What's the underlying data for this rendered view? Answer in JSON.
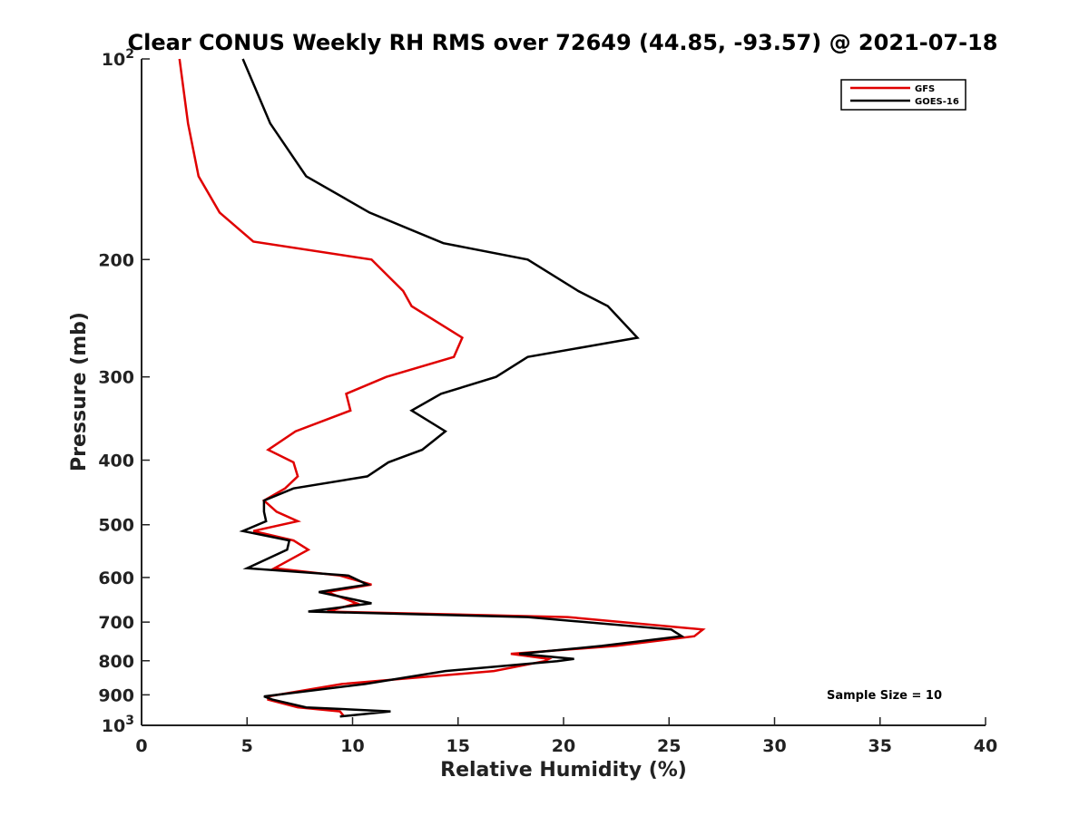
{
  "chart_data": {
    "type": "line",
    "title": "Clear CONUS Weekly RH RMS over 72649 (44.85, -93.57) @ 2021-07-18",
    "xlabel": "Relative Humidity (%)",
    "ylabel": "Pressure (mb)",
    "xlim": [
      0,
      40
    ],
    "ylim": [
      100,
      1000
    ],
    "y_scale": "log",
    "y_reversed": true,
    "x_ticks": [
      "0",
      "5",
      "10",
      "15",
      "20",
      "25",
      "30",
      "35",
      "40"
    ],
    "y_ticks": [
      {
        "value": 100,
        "base": "10",
        "exp": "2"
      },
      {
        "value": 200,
        "label": "200"
      },
      {
        "value": 300,
        "label": "300"
      },
      {
        "value": 400,
        "label": "400"
      },
      {
        "value": 500,
        "label": "500"
      },
      {
        "value": 600,
        "label": "600"
      },
      {
        "value": 700,
        "label": "700"
      },
      {
        "value": 800,
        "label": "800"
      },
      {
        "value": 900,
        "label": "900"
      },
      {
        "value": 1000,
        "base": "10",
        "exp": "3"
      }
    ],
    "grid": false,
    "legend_position": "top-right",
    "annotation": "Sample Size = 10",
    "series": [
      {
        "name": "GFS",
        "color": "#e00000",
        "points": [
          [
            1.8,
            100
          ],
          [
            2.2,
            125
          ],
          [
            2.7,
            150
          ],
          [
            3.7,
            170
          ],
          [
            5.3,
            188
          ],
          [
            10.9,
            200
          ],
          [
            12.4,
            223
          ],
          [
            12.8,
            235
          ],
          [
            15.2,
            262
          ],
          [
            14.8,
            280
          ],
          [
            11.6,
            300
          ],
          [
            9.7,
            318
          ],
          [
            9.9,
            337
          ],
          [
            7.3,
            362
          ],
          [
            6.0,
            386
          ],
          [
            7.2,
            403
          ],
          [
            7.4,
            423
          ],
          [
            6.8,
            441
          ],
          [
            5.8,
            460
          ],
          [
            6.4,
            478
          ],
          [
            7.4,
            494
          ],
          [
            5.3,
            511
          ],
          [
            7.2,
            528
          ],
          [
            7.9,
            545
          ],
          [
            6.3,
            581
          ],
          [
            9.4,
            596
          ],
          [
            10.9,
            615
          ],
          [
            8.8,
            631
          ],
          [
            10.2,
            656
          ],
          [
            8.8,
            675
          ],
          [
            20.2,
            688
          ],
          [
            26.6,
            718
          ],
          [
            26.2,
            735
          ],
          [
            22.5,
            760
          ],
          [
            17.5,
            781
          ],
          [
            19.3,
            795
          ],
          [
            19.1,
            801
          ],
          [
            16.7,
            829
          ],
          [
            9.5,
            867
          ],
          [
            6.0,
            905
          ],
          [
            6.0,
            915
          ],
          [
            7.4,
            940
          ],
          [
            9.4,
            953
          ],
          [
            9.6,
            970
          ]
        ]
      },
      {
        "name": "GOES-16",
        "color": "#000000",
        "points": [
          [
            4.8,
            100
          ],
          [
            6.1,
            125
          ],
          [
            7.8,
            150
          ],
          [
            10.8,
            170
          ],
          [
            14.3,
            189
          ],
          [
            18.3,
            200
          ],
          [
            20.7,
            223
          ],
          [
            22.1,
            235
          ],
          [
            23.5,
            262
          ],
          [
            18.3,
            280
          ],
          [
            16.8,
            300
          ],
          [
            14.2,
            318
          ],
          [
            12.8,
            337
          ],
          [
            14.4,
            362
          ],
          [
            13.3,
            386
          ],
          [
            11.7,
            403
          ],
          [
            10.7,
            423
          ],
          [
            7.2,
            441
          ],
          [
            5.8,
            460
          ],
          [
            5.8,
            478
          ],
          [
            5.9,
            494
          ],
          [
            4.8,
            511
          ],
          [
            7.0,
            528
          ],
          [
            6.9,
            545
          ],
          [
            5.0,
            581
          ],
          [
            9.8,
            596
          ],
          [
            10.7,
            615
          ],
          [
            8.4,
            631
          ],
          [
            10.9,
            656
          ],
          [
            7.9,
            675
          ],
          [
            18.3,
            688
          ],
          [
            25.1,
            718
          ],
          [
            25.6,
            735
          ],
          [
            21.8,
            760
          ],
          [
            17.9,
            781
          ],
          [
            20.5,
            795
          ],
          [
            19.7,
            801
          ],
          [
            14.4,
            829
          ],
          [
            10.6,
            867
          ],
          [
            5.8,
            905
          ],
          [
            6.2,
            915
          ],
          [
            7.8,
            940
          ],
          [
            11.8,
            953
          ],
          [
            9.4,
            970
          ]
        ]
      }
    ]
  }
}
